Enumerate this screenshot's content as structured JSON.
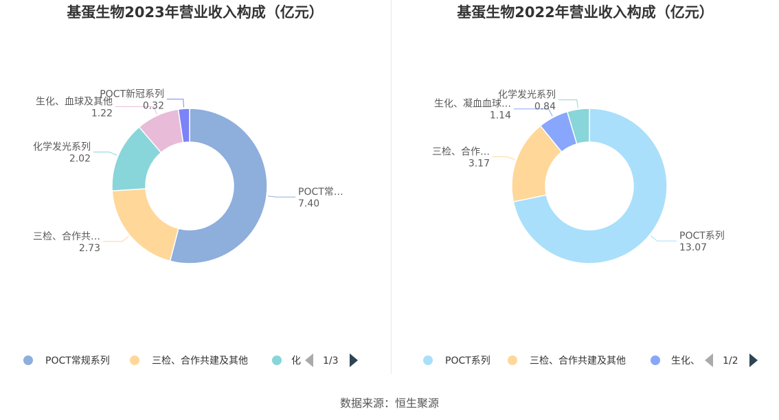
{
  "source": "数据来源：恒生聚源",
  "colors": {
    "left": [
      "#8eaedc",
      "#fed799",
      "#88d5da",
      "#e8bbd9",
      "#7b83f7"
    ],
    "right": [
      "#a9dffa",
      "#fed799",
      "#88a6fb",
      "#88d5da"
    ]
  },
  "chart_data": [
    {
      "type": "pie",
      "donut": true,
      "title": "基蛋生物2023年营业收入构成（亿元）",
      "slices": [
        {
          "name": "POCT常规系列",
          "value": 7.4,
          "label_name": "POCT常…",
          "label_value": "7.40"
        },
        {
          "name": "三检、合作共建及其他",
          "value": 2.73,
          "label_name": "三检、合作共…",
          "label_value": "2.73"
        },
        {
          "name": "化学发光系列",
          "value": 2.02,
          "label_name": "化学发光系列",
          "label_value": "2.02"
        },
        {
          "name": "生化、血球及其他",
          "value": 1.22,
          "label_name": "生化、血球及其他",
          "label_value": "1.22"
        },
        {
          "name": "POCT新冠系列",
          "value": 0.32,
          "label_name": "POCT新冠系列",
          "label_value": "0.32"
        }
      ],
      "legend": {
        "items": [
          "POCT常规系列",
          "三检、合作共建及其他",
          "化"
        ],
        "page": "1/3",
        "placement": "bottom"
      }
    },
    {
      "type": "pie",
      "donut": true,
      "title": "基蛋生物2022年营业收入构成（亿元）",
      "slices": [
        {
          "name": "POCT系列",
          "value": 13.07,
          "label_name": "POCT系列",
          "label_value": "13.07"
        },
        {
          "name": "三检、合作共建及其他",
          "value": 3.17,
          "label_name": "三检、合作…",
          "label_value": "3.17"
        },
        {
          "name": "生化、凝血血球…",
          "value": 1.14,
          "label_name": "生化、凝血血球…",
          "label_value": "1.14"
        },
        {
          "name": "化学发光系列",
          "value": 0.84,
          "label_name": "化学发光系列",
          "label_value": "0.84"
        }
      ],
      "legend": {
        "items": [
          "POCT系列",
          "三检、合作共建及其他",
          "生化、"
        ],
        "page": "1/2",
        "placement": "bottom"
      }
    }
  ]
}
